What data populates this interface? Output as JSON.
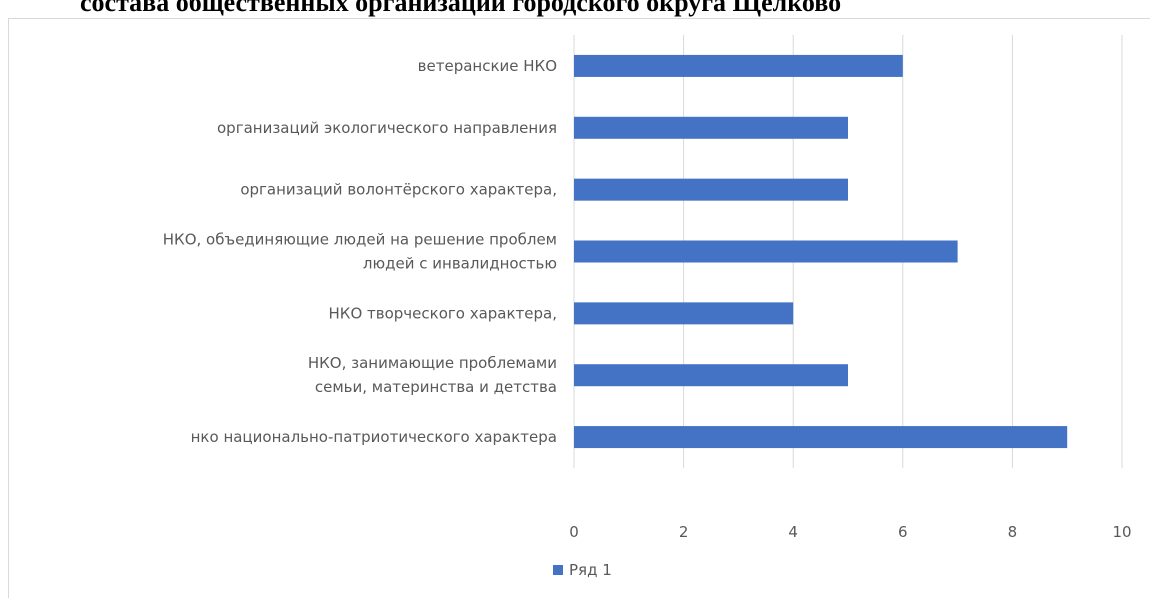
{
  "title": "состава общественных организаций городского округа Щелково",
  "colors": {
    "bar": "#4472c4",
    "grid": "#d9d9d9",
    "text": "#595959"
  },
  "chart_data": {
    "type": "bar",
    "orientation": "horizontal",
    "categories": [
      [
        "ветеранские НКО"
      ],
      [
        "организаций экологического направления"
      ],
      [
        "организаций волонтёрского характера,"
      ],
      [
        "НКО, объединяющие людей на решение проблем",
        "людей с инвалидностью"
      ],
      [
        "НКО творческого характера,"
      ],
      [
        "НКО,  занимающие проблемами",
        "семьи, материнства и детства"
      ],
      [
        "нко национально-патриотического характера"
      ]
    ],
    "series": [
      {
        "name": "Ряд 1",
        "values": [
          6,
          5,
          5,
          7,
          4,
          5,
          9
        ]
      }
    ],
    "xlim": [
      0,
      10
    ],
    "xticks": [
      "0",
      "2",
      "4",
      "6",
      "8",
      "10"
    ],
    "grid": true,
    "legend_position": "bottom"
  }
}
